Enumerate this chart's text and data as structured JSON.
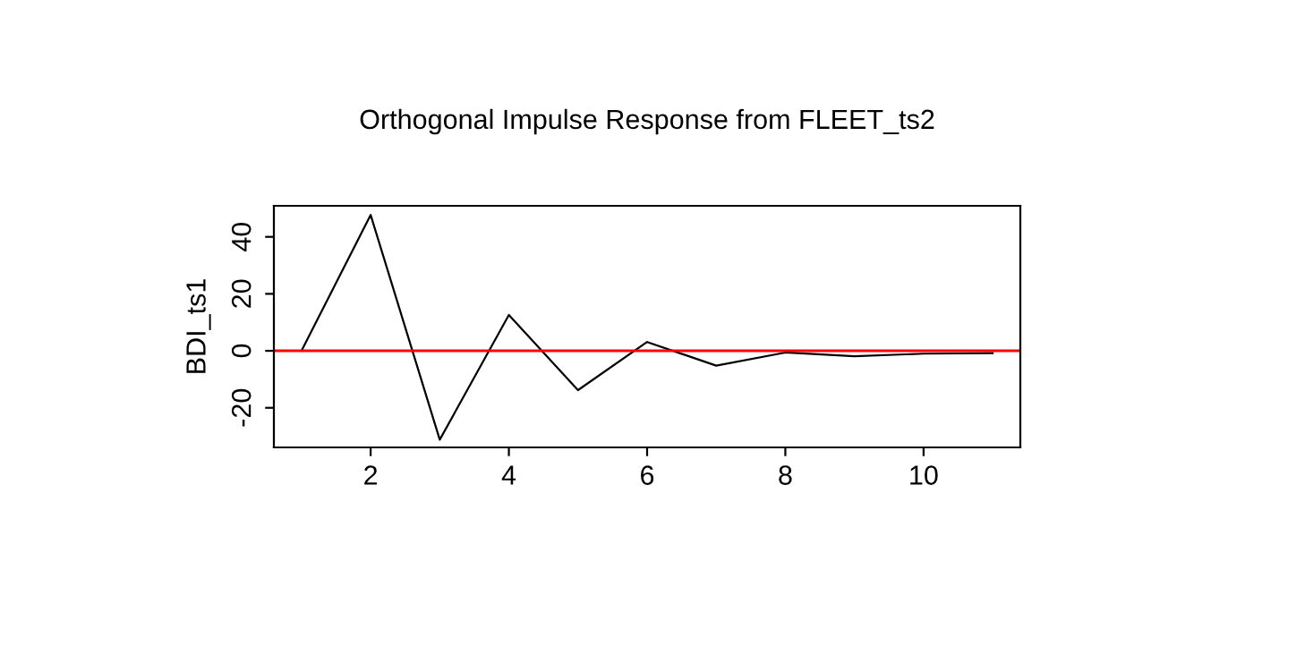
{
  "chart_data": {
    "type": "line",
    "title": "Orthogonal Impulse Response from FLEET_ts2",
    "ylabel": "BDI_ts1",
    "x": [
      1,
      2,
      3,
      4,
      5,
      6,
      7,
      8,
      9,
      10,
      11
    ],
    "series": [
      {
        "color": "#000000",
        "values": [
          0,
          47.7,
          -31.2,
          12.6,
          -13.8,
          3.1,
          -5.2,
          -0.6,
          -1.9,
          -1.0,
          -0.8
        ]
      }
    ],
    "xlim": [
      0.6,
      11.4
    ],
    "ylim": [
      -33.9,
      50.9
    ],
    "xticks": [
      2,
      4,
      6,
      8,
      10
    ],
    "yticks": [
      -20,
      0,
      20,
      40
    ],
    "ref_lines": [
      {
        "axis": "y",
        "value": 0,
        "color": "#ff0000"
      }
    ],
    "grid": false,
    "legend": false,
    "marker": "none",
    "line_style": "solid"
  }
}
